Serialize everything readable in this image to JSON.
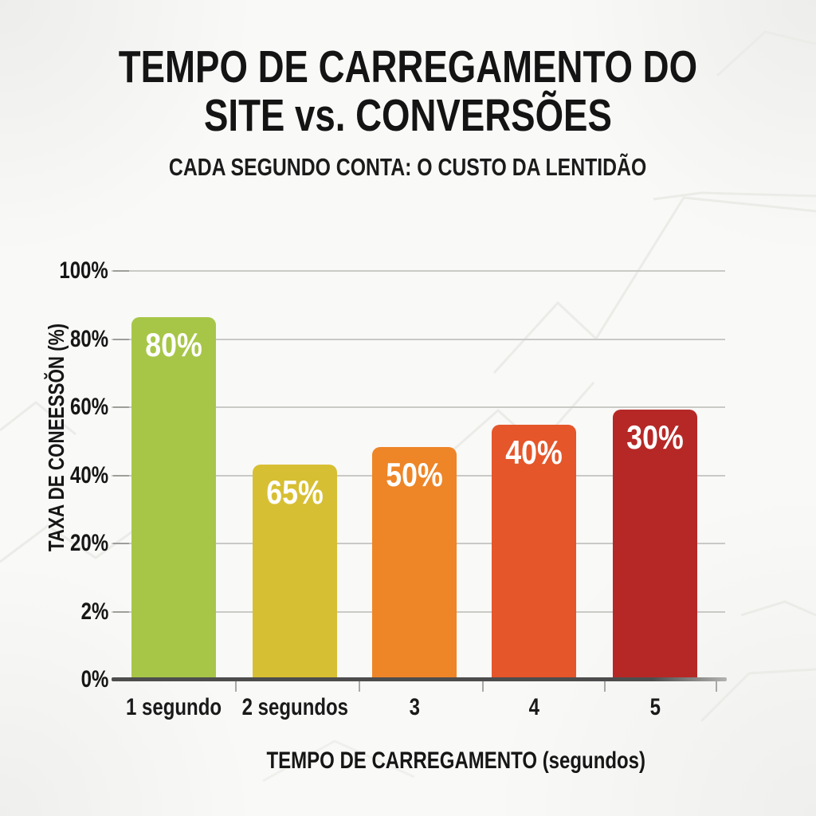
{
  "header": {
    "title_line1": "TEMPO DE CARREGAMENTO DO",
    "title_line2": "SITE vs. CONVERSÕES",
    "subtitle": "CADA SEGUNDO CONTA: O CUSTO DA LENTIDÃO"
  },
  "chart_data": {
    "type": "bar",
    "title": "TEMPO DE CARREGAMENTO DO SITE vs. CONVERSÕES",
    "subtitle": "CADA SEGUNDO CONTA: O CUSTO DA LENTIDÃO",
    "xlabel": "TEMPO DE CARREGAMENTO (segundos)",
    "ylabel": "TAXA DE CONEESSŎN (%)",
    "categories": [
      "1 segundo",
      "2 segundos",
      "3",
      "4",
      "5"
    ],
    "values": [
      80,
      65,
      50,
      40,
      30
    ],
    "value_labels": [
      "80%",
      "65%",
      "50%",
      "40%",
      "30%"
    ],
    "bar_colors": [
      "#a7c648",
      "#d7bf33",
      "#ee8527",
      "#e5562a",
      "#b62826"
    ],
    "y_ticks": [
      "100%",
      "80%",
      "60%",
      "40%",
      "20%",
      "2%",
      "0%"
    ],
    "ylim": [
      0,
      100
    ],
    "grid": true,
    "legend": false,
    "drawn_bar_top_pct": [
      88.7,
      52.6,
      56.9,
      62.4,
      66.1
    ]
  },
  "colors": {
    "background": "#f9f9f7",
    "text": "#141414",
    "grid": "#c9c9c6",
    "axis": "#4d4d4d",
    "value_label_text": "#ffffff"
  }
}
